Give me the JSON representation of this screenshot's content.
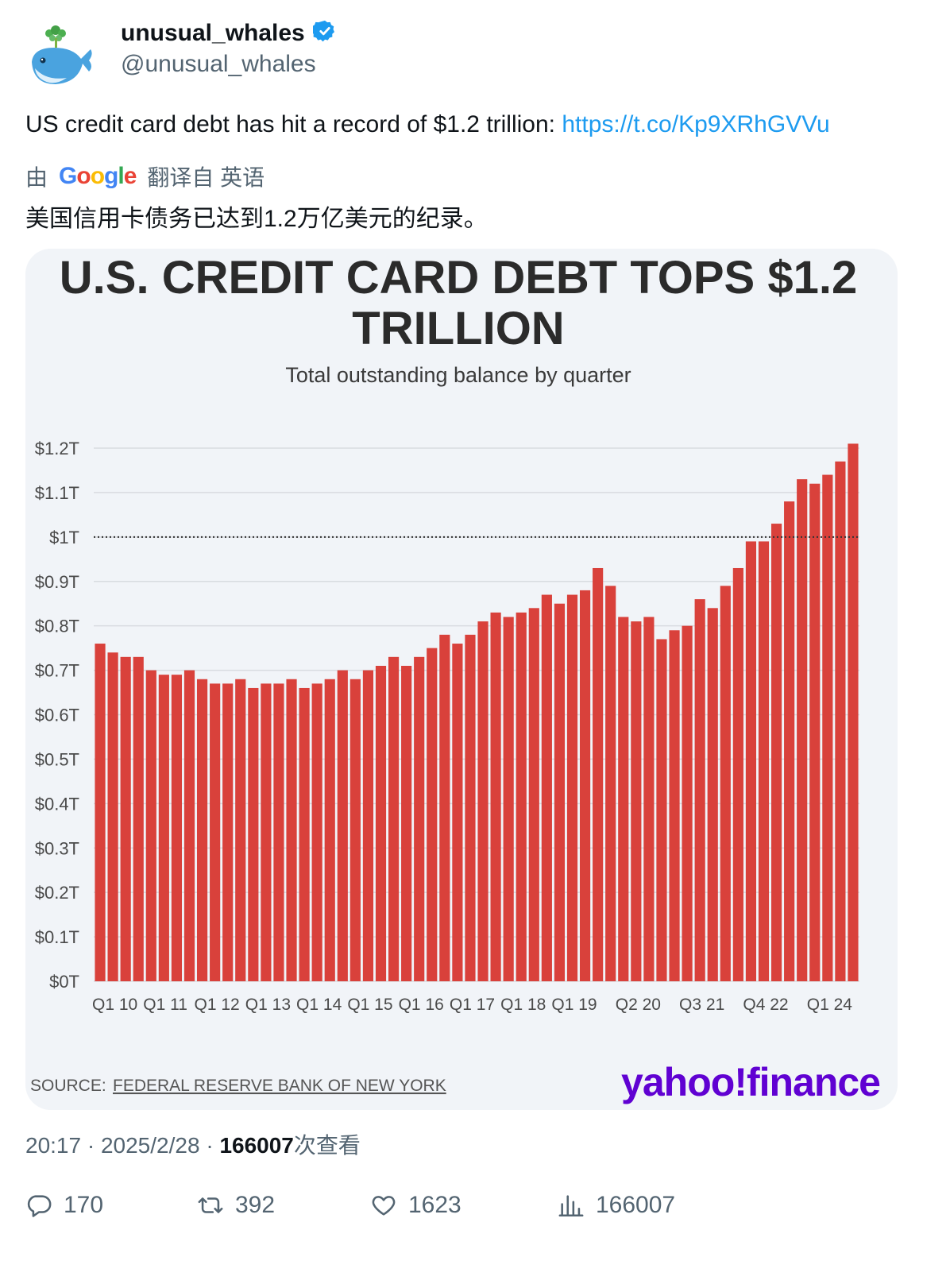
{
  "author": {
    "display_name": "unusual_whales",
    "handle": "@unusual_whales"
  },
  "tweet": {
    "text": "US credit card debt has hit a record of $1.2 trillion: ",
    "link": "https://t.co/Kp9XRhGVVu"
  },
  "translation": {
    "prefix": "由",
    "provider": "Google",
    "suffix": "翻译自 英语",
    "text": "美国信用卡债务已达到1.2万亿美元的纪录。"
  },
  "meta": {
    "time": "20:17",
    "separator": " · ",
    "date": "2025/2/28",
    "views": "166007",
    "views_label": "次查看"
  },
  "actions": {
    "replies": "170",
    "reposts": "392",
    "likes": "1623",
    "views": "166007"
  },
  "media": {
    "source_prefix": "SOURCE:",
    "source": "FEDERAL RESERVE BANK OF NEW YORK",
    "brand": "yahoo!finance"
  },
  "colors": {
    "bar": "#d9413b",
    "link": "#1d9bf0",
    "yahoo_purple": "#6001d2"
  },
  "chart_data": {
    "type": "bar",
    "title": "U.S. CREDIT CARD DEBT TOPS $1.2 TRILLION",
    "subtitle": "Total outstanding balance by quarter",
    "unit": "trillion USD",
    "ylim": [
      0,
      1.2
    ],
    "yticks": [
      "$0T",
      "$0.1T",
      "$0.2T",
      "$0.3T",
      "$0.4T",
      "$0.5T",
      "$0.6T",
      "$0.7T",
      "$0.8T",
      "$0.9T",
      "$1T",
      "$1.1T",
      "$1.2T"
    ],
    "reference_line": 1.0,
    "grid": true,
    "xtick_labels": [
      {
        "label": "Q1 10",
        "index": 0
      },
      {
        "label": "Q1 11",
        "index": 4
      },
      {
        "label": "Q1 12",
        "index": 8
      },
      {
        "label": "Q1 13",
        "index": 12
      },
      {
        "label": "Q1 14",
        "index": 16
      },
      {
        "label": "Q1 15",
        "index": 20
      },
      {
        "label": "Q1 16",
        "index": 24
      },
      {
        "label": "Q1 17",
        "index": 28
      },
      {
        "label": "Q1 18",
        "index": 32
      },
      {
        "label": "Q1 19",
        "index": 36
      },
      {
        "label": "Q2 20",
        "index": 41
      },
      {
        "label": "Q3 21",
        "index": 46
      },
      {
        "label": "Q4 22",
        "index": 51
      },
      {
        "label": "Q1 24",
        "index": 56
      }
    ],
    "values": [
      0.76,
      0.74,
      0.73,
      0.73,
      0.7,
      0.69,
      0.69,
      0.7,
      0.68,
      0.67,
      0.67,
      0.68,
      0.66,
      0.67,
      0.67,
      0.68,
      0.66,
      0.67,
      0.68,
      0.7,
      0.68,
      0.7,
      0.71,
      0.73,
      0.71,
      0.73,
      0.75,
      0.78,
      0.76,
      0.78,
      0.81,
      0.83,
      0.82,
      0.83,
      0.84,
      0.87,
      0.85,
      0.87,
      0.88,
      0.93,
      0.89,
      0.82,
      0.81,
      0.82,
      0.77,
      0.79,
      0.8,
      0.86,
      0.84,
      0.89,
      0.93,
      0.99,
      0.99,
      1.03,
      1.08,
      1.13,
      1.12,
      1.14,
      1.17,
      1.21
    ]
  }
}
